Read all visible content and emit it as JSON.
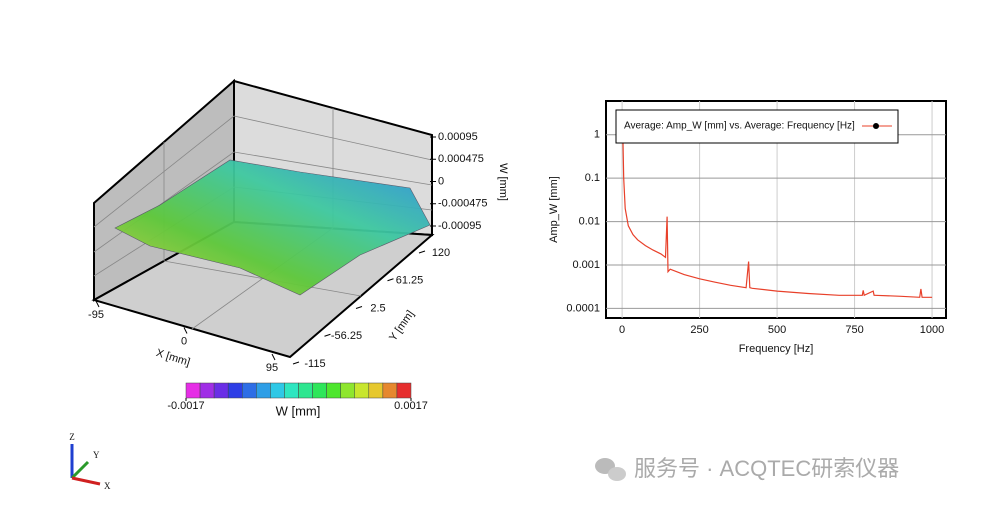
{
  "chart_data": [
    {
      "type": "surface",
      "z_label": "W [mm]",
      "y_label": "Y [mm]",
      "x_label": "X [mm]",
      "zlim": [
        -0.00095,
        0.00095
      ],
      "zticks": [
        0.00095,
        0.000475,
        0,
        -0.000475,
        -0.00095
      ],
      "ylim": [
        -115,
        120
      ],
      "yticks": [
        120,
        61.25,
        2.5,
        -56.25,
        -115
      ],
      "xlim": [
        -95,
        95
      ],
      "xticks": [
        -95,
        0,
        95
      ],
      "colorbar": {
        "label": "W [mm]",
        "clim": [
          -0.0017,
          0.0017
        ],
        "colors": [
          "#e62ee6",
          "#a02ee6",
          "#6a2ee6",
          "#2e3ee6",
          "#2e6ee6",
          "#2e9ee6",
          "#2ec8e6",
          "#2ee6c0",
          "#2ee690",
          "#2ee65a",
          "#4ee62e",
          "#8ee62e",
          "#c8e62e",
          "#e6c82e",
          "#e6882e",
          "#e62e2e"
        ]
      }
    },
    {
      "type": "line",
      "log_y": true,
      "grid": true,
      "legend": "upper left",
      "x_label": "Frequency [Hz]",
      "y_label": "Amp_W [mm]",
      "xlim": [
        -52,
        1045
      ],
      "xticks": [
        0,
        250,
        500,
        750,
        1000
      ],
      "ylim": [
        6e-05,
        6
      ],
      "yticks": [
        0.0001,
        0.001,
        0.01,
        0.1,
        1
      ],
      "x": [
        2,
        5,
        10,
        20,
        35,
        50,
        75,
        100,
        125,
        140,
        145,
        148,
        155,
        200,
        250,
        300,
        350,
        400,
        408,
        412,
        420,
        500,
        600,
        700,
        775,
        778,
        781,
        810,
        813,
        816,
        900,
        960,
        964,
        968,
        1000
      ],
      "series": [
        {
          "name": "Average: Amp_W [mm] vs. Average: Frequency [Hz]",
          "color": "#e8402a",
          "values": [
            1.5,
            0.1,
            0.02,
            0.008,
            0.005,
            0.0038,
            0.0028,
            0.0022,
            0.0018,
            0.0015,
            0.013,
            0.0007,
            0.0008,
            0.0006,
            0.00048,
            0.0004,
            0.00034,
            0.0003,
            0.0012,
            0.0003,
            0.00029,
            0.00025,
            0.00022,
            0.0002,
            0.0002,
            0.00026,
            0.0002,
            0.00025,
            0.0002,
            0.0002,
            0.00019,
            0.00018,
            0.00028,
            0.00018,
            0.00018
          ]
        }
      ]
    }
  ],
  "triad": {
    "z": "Z",
    "y": "Y",
    "x": "X"
  },
  "watermark": "服务号 · ACQTEC研索仪器"
}
